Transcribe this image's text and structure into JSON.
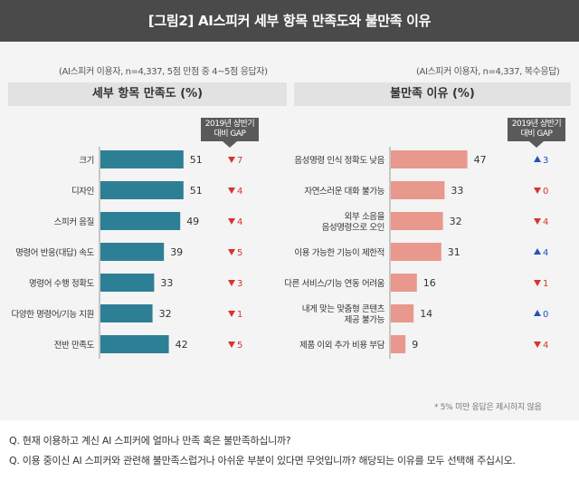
{
  "title": "[그림2] AI스피커 세부 항목 만족도와 불만족 이유",
  "colors": {
    "header": "#4a4a4a",
    "bar_left": "#2d7f96",
    "bar_right": "#e8988c",
    "down": "#d9342b",
    "up": "#2354b8"
  },
  "left_note": "(AI스피커 이용자, n=4,337, 5점 만점 중 4~5점 응답자)",
  "right_note": "(AI스피커 이용자, n=4,337, 복수응답)",
  "gap_header": {
    "line1": "2019년 상반기",
    "line2": "대비 GAP"
  },
  "footnote": "* 5% 미만 응답은 제시하지 않음",
  "questions": [
    "Q. 현재 이용하고 계신 AI 스피커에 얼마나 만족 혹은 불만족하십니까?",
    "Q. 이용 중이신 AI 스피커와 관련해 불만족스럽거나 아쉬운 부분이 있다면 무엇입니까? 해당되는 이유를 모두 선택해 주십시오."
  ],
  "chart_data": [
    {
      "type": "bar",
      "orientation": "horizontal",
      "title": "세부 항목 만족도 (%)",
      "categories": [
        "크기",
        "디자인",
        "스피커 음질",
        "명령어 반응(대답) 속도",
        "명령어 수행 정확도",
        "다양한 명령어/기능 지원",
        "전반 만족도"
      ],
      "values": [
        51,
        51,
        49,
        39,
        33,
        32,
        42
      ],
      "gap": [
        {
          "dir": "down",
          "value": "7"
        },
        {
          "dir": "down",
          "value": "4"
        },
        {
          "dir": "down",
          "value": "4"
        },
        {
          "dir": "down",
          "value": "5"
        },
        {
          "dir": "down",
          "value": "3"
        },
        {
          "dir": "down",
          "value": "1"
        },
        {
          "dir": "down",
          "value": "5"
        }
      ]
    },
    {
      "type": "bar",
      "orientation": "horizontal",
      "title": "불만족 이유 (%)",
      "categories": [
        "음성명령 인식 정확도 낮음",
        "자연스러운 대화 불가능",
        "외부 소음을\n음성명령으로 오인",
        "이용 가능한 기능이 제한적",
        "다른 서비스/기능 연동 어려움",
        "내게 맞는 맞춤형 콘텐츠\n제공 불가능",
        "제품 이외 추가 비용 부담"
      ],
      "values": [
        47,
        33,
        32,
        31,
        16,
        14,
        9
      ],
      "gap": [
        {
          "dir": "up",
          "value": "3"
        },
        {
          "dir": "down",
          "value": "0"
        },
        {
          "dir": "down",
          "value": "4"
        },
        {
          "dir": "up",
          "value": "4"
        },
        {
          "dir": "down",
          "value": "1"
        },
        {
          "dir": "up",
          "value": "0"
        },
        {
          "dir": "down",
          "value": "4"
        }
      ]
    }
  ]
}
